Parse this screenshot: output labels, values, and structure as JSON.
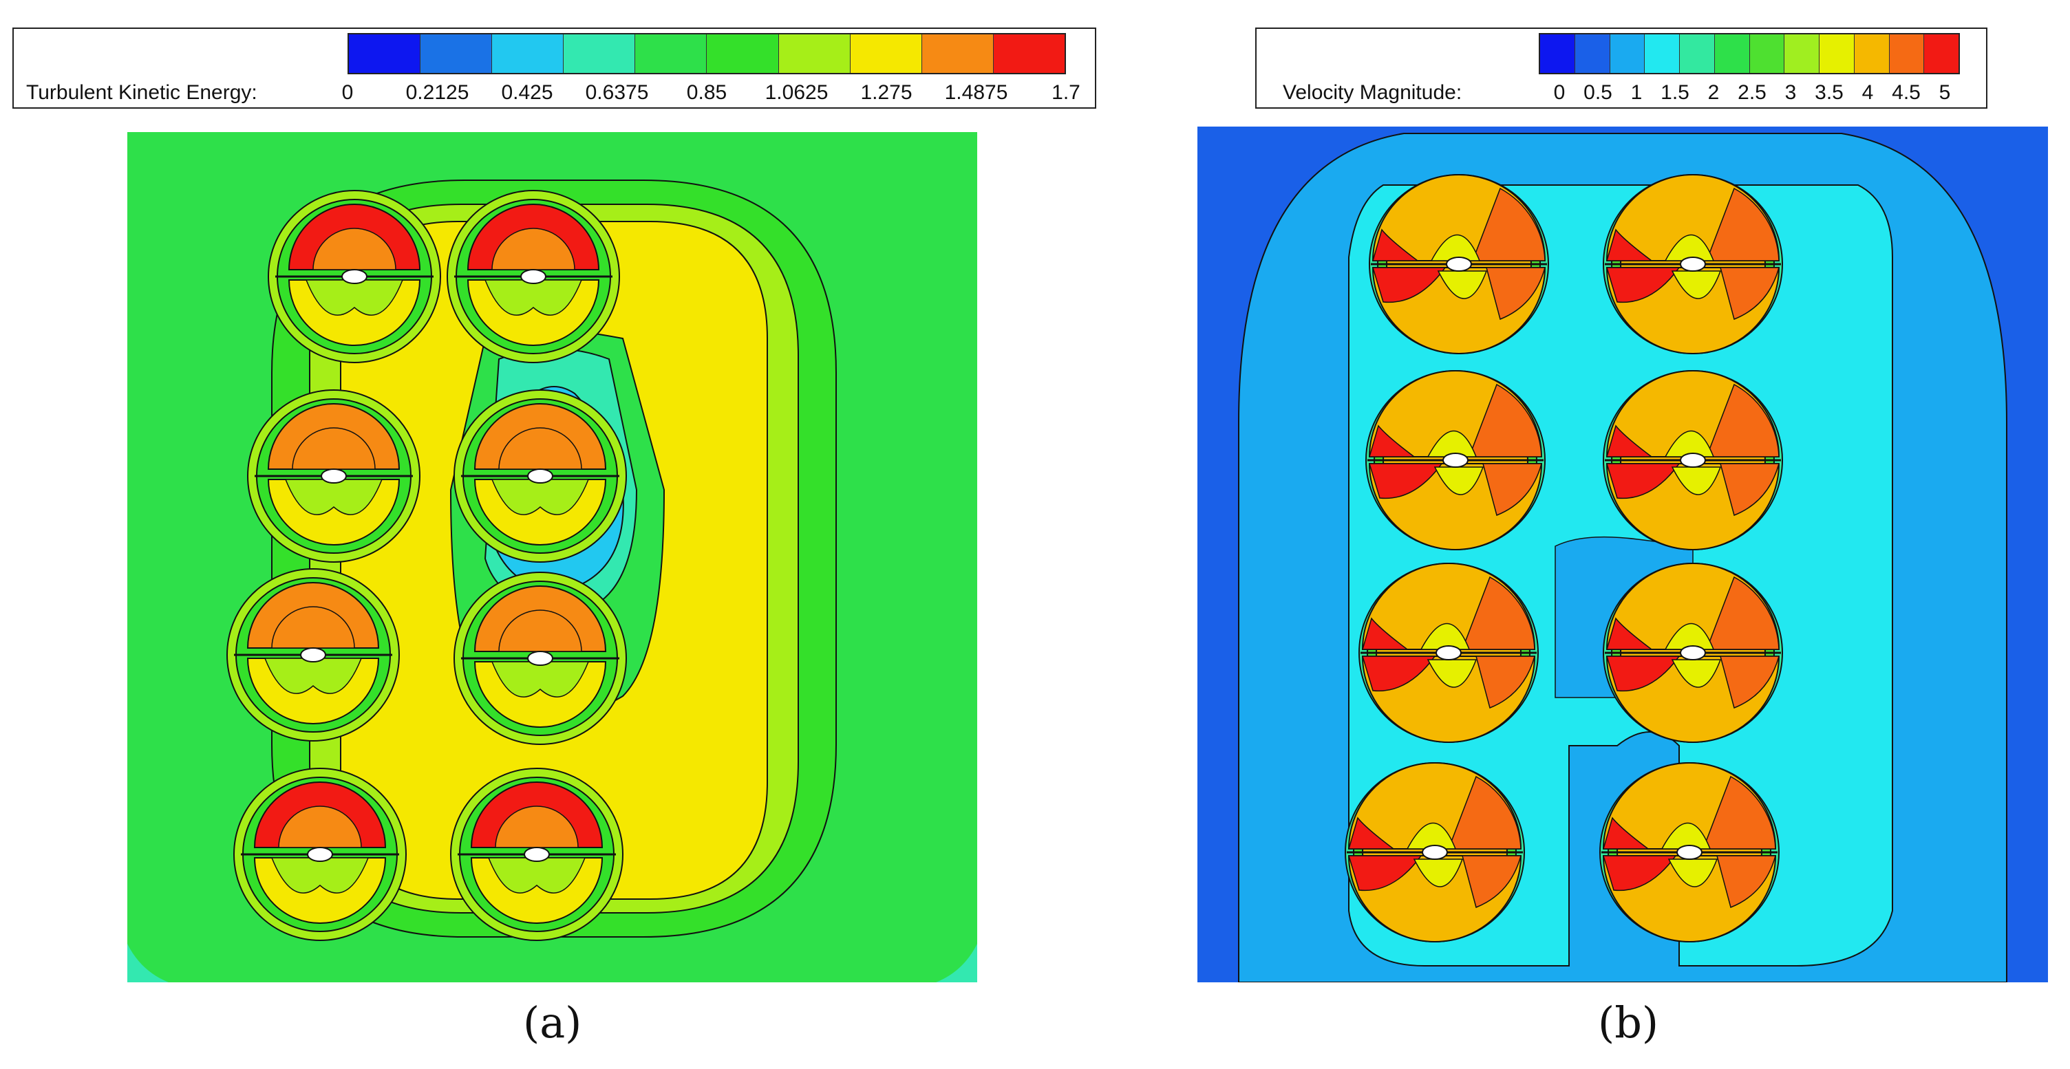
{
  "figures": [
    {
      "id": "a",
      "legend_title": "Turbulent Kinetic Energy:",
      "legend_colors": [
        "#0d17f0",
        "#1a72e6",
        "#22c8f0",
        "#33e8b0",
        "#2ee04a",
        "#34e02a",
        "#a6ee18",
        "#f5e800",
        "#f68a14",
        "#f21a14"
      ],
      "legend_ticks": [
        "0",
        "0.2125",
        "0.425",
        "0.6375",
        "0.85",
        "1.0625",
        "1.275",
        "1.4875",
        "1.7"
      ],
      "background_color": "#22e038",
      "caption": "(a)"
    },
    {
      "id": "b",
      "legend_title": "Velocity Magnitude:",
      "legend_colors": [
        "#0d17f0",
        "#1a60e8",
        "#1aaaf0",
        "#22e8f0",
        "#33e8a0",
        "#2ee04a",
        "#4ee030",
        "#a0ee20",
        "#e6f000",
        "#f5b800",
        "#f56a14",
        "#f21a14"
      ],
      "legend_ticks": [
        "0",
        "0.5",
        "1",
        "1.5",
        "2",
        "2.5",
        "3",
        "3.5",
        "4",
        "4.5",
        "5"
      ],
      "background_color": "#1a72e6",
      "caption": "(b)"
    }
  ]
}
